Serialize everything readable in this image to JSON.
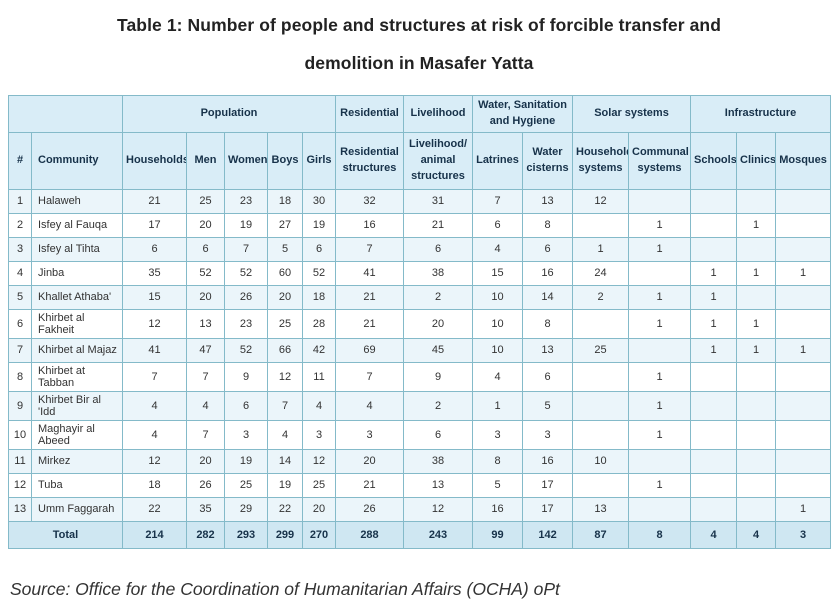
{
  "chart_data": {
    "type": "table",
    "title_lines": [
      "Table 1: Number of people and structures at risk of forcible transfer and",
      "demolition in Masafer Yatta"
    ],
    "source": "Source: Office for the Coordination of Humanitarian Affairs (OCHA) oPt",
    "group_headers": [
      {
        "label": "",
        "span": 2
      },
      {
        "label": "Population",
        "span": 5
      },
      {
        "label": "Residential",
        "span": 1
      },
      {
        "label": "Livelihood",
        "span": 1
      },
      {
        "label": "Water, Sanitation and Hygiene",
        "span": 2
      },
      {
        "label": "Solar systems",
        "span": 2
      },
      {
        "label": "Infrastructure",
        "span": 3
      }
    ],
    "columns": [
      "#",
      "Community",
      "Households",
      "Men",
      "Women",
      "Boys",
      "Girls",
      "Residential structures",
      "Livelihood/ animal structures",
      "Latrines",
      "Water cisterns",
      "Household systems",
      "Communal systems",
      "Schools",
      "Clinics",
      "Mosques"
    ],
    "rows": [
      [
        "1",
        "Halaweh",
        "21",
        "25",
        "23",
        "18",
        "30",
        "32",
        "31",
        "7",
        "13",
        "12",
        "",
        "",
        "",
        ""
      ],
      [
        "2",
        "Isfey al Fauqa",
        "17",
        "20",
        "19",
        "27",
        "19",
        "16",
        "21",
        "6",
        "8",
        "",
        "1",
        "",
        "1",
        ""
      ],
      [
        "3",
        "Isfey al Tihta",
        "6",
        "6",
        "7",
        "5",
        "6",
        "7",
        "6",
        "4",
        "6",
        "1",
        "1",
        "",
        "",
        ""
      ],
      [
        "4",
        "Jinba",
        "35",
        "52",
        "52",
        "60",
        "52",
        "41",
        "38",
        "15",
        "16",
        "24",
        "",
        "1",
        "1",
        "1"
      ],
      [
        "5",
        "Khallet Athaba'",
        "15",
        "20",
        "26",
        "20",
        "18",
        "21",
        "2",
        "10",
        "14",
        "2",
        "1",
        "1",
        "",
        ""
      ],
      [
        "6",
        "Khirbet al Fakheit",
        "12",
        "13",
        "23",
        "25",
        "28",
        "21",
        "20",
        "10",
        "8",
        "",
        "1",
        "1",
        "1",
        ""
      ],
      [
        "7",
        "Khirbet al Majaz",
        "41",
        "47",
        "52",
        "66",
        "42",
        "69",
        "45",
        "10",
        "13",
        "25",
        "",
        "1",
        "1",
        "1"
      ],
      [
        "8",
        "Khirbet at Tabban",
        "7",
        "7",
        "9",
        "12",
        "11",
        "7",
        "9",
        "4",
        "6",
        "",
        "1",
        "",
        "",
        ""
      ],
      [
        "9",
        "Khirbet Bir al 'Idd",
        "4",
        "4",
        "6",
        "7",
        "4",
        "4",
        "2",
        "1",
        "5",
        "",
        "1",
        "",
        "",
        ""
      ],
      [
        "10",
        "Maghayir al Abeed",
        "4",
        "7",
        "3",
        "4",
        "3",
        "3",
        "6",
        "3",
        "3",
        "",
        "1",
        "",
        "",
        ""
      ],
      [
        "11",
        "Mirkez",
        "12",
        "20",
        "19",
        "14",
        "12",
        "20",
        "38",
        "8",
        "16",
        "10",
        "",
        "",
        "",
        ""
      ],
      [
        "12",
        "Tuba",
        "18",
        "26",
        "25",
        "19",
        "25",
        "21",
        "13",
        "5",
        "17",
        "",
        "1",
        "",
        "",
        ""
      ],
      [
        "13",
        "Umm Faggarah",
        "22",
        "35",
        "29",
        "22",
        "20",
        "26",
        "12",
        "16",
        "17",
        "13",
        "",
        "",
        "",
        "1"
      ]
    ],
    "total": {
      "label": "Total",
      "values": [
        "214",
        "282",
        "293",
        "299",
        "270",
        "288",
        "243",
        "99",
        "142",
        "87",
        "8",
        "4",
        "4",
        "3"
      ]
    },
    "colors": {
      "header_bg": "#d9edf7",
      "odd_row_bg": "#ebf5fa",
      "total_row_bg": "#cfe7f2",
      "border": "#84bac9",
      "header_text": "#17324a"
    }
  }
}
